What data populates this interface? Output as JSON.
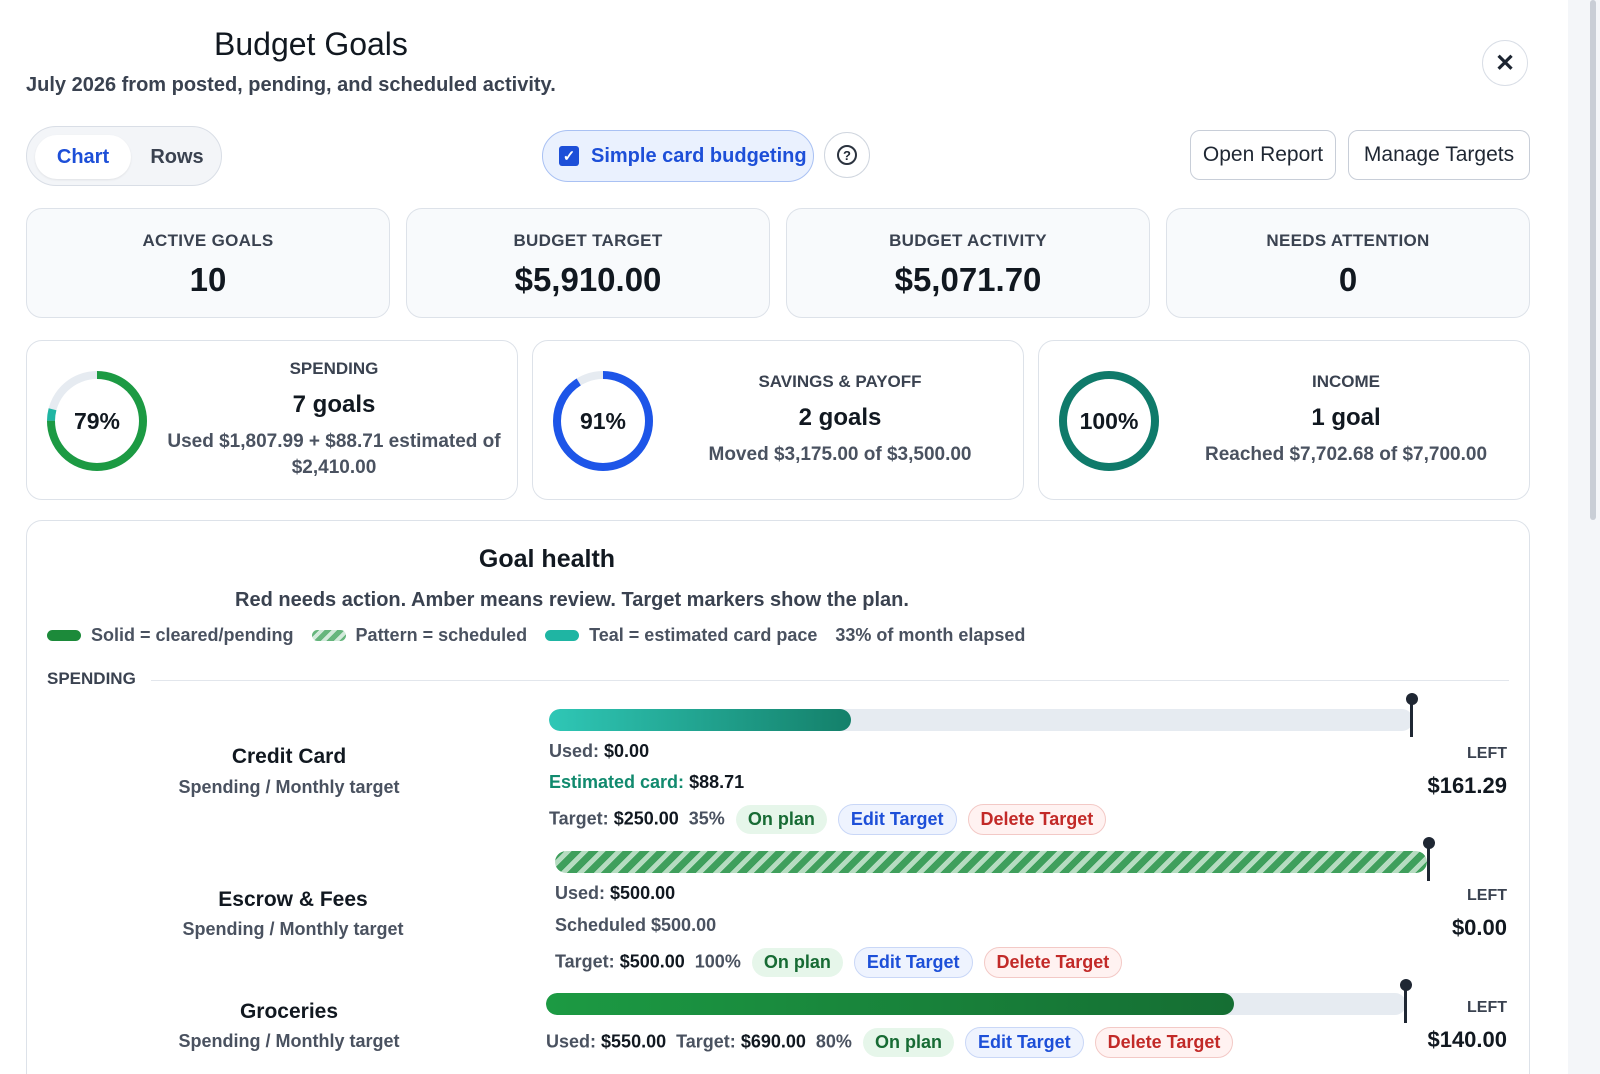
{
  "header": {
    "title": "Budget Goals",
    "subtitle": "July 2026 from posted, pending, and scheduled activity.",
    "close_icon": "✕"
  },
  "view_toggle": {
    "chart": "Chart",
    "rows": "Rows",
    "selected": "Chart"
  },
  "simple_card": {
    "label": "Simple card budgeting",
    "checked": true,
    "help": "?"
  },
  "actions": {
    "open_report": "Open Report",
    "manage_targets": "Manage Targets"
  },
  "stats": [
    {
      "label": "ACTIVE GOALS",
      "value": "10"
    },
    {
      "label": "BUDGET TARGET",
      "value": "$5,910.00"
    },
    {
      "label": "BUDGET ACTIVITY",
      "value": "$5,071.70"
    },
    {
      "label": "NEEDS ATTENTION",
      "value": "0"
    }
  ],
  "categories": [
    {
      "label": "SPENDING",
      "percent_text": "79%",
      "percent": 79,
      "estimated_percent": 4,
      "count": "7 goals",
      "detail": "Used $1,807.99 + $88.71 estimated of $2,410.00",
      "color": "#1c9a43",
      "est_color": "#1fb5a3"
    },
    {
      "label": "SAVINGS & PAYOFF",
      "percent_text": "91%",
      "percent": 91,
      "count": "2 goals",
      "detail": "Moved $3,175.00 of $3,500.00",
      "color": "#1d55e8"
    },
    {
      "label": "INCOME",
      "percent_text": "100%",
      "percent": 100,
      "count": "1 goal",
      "detail": "Reached $7,702.68 of $7,700.00",
      "color": "#0f7a6a"
    }
  ],
  "health": {
    "title": "Goal health",
    "subtitle": "Red needs action. Amber means review. Target markers show the plan.",
    "legend": {
      "solid": "Solid = cleared/pending",
      "pattern": "Pattern = scheduled",
      "teal": "Teal = estimated card pace",
      "elapsed": "33% of month elapsed"
    },
    "section": "SPENDING",
    "left_label": "LEFT",
    "goals": [
      {
        "name": "Credit Card",
        "type": "Spending / Monthly target",
        "fill_fraction": 0.35,
        "used_label": "Used:",
        "used": "$0.00",
        "est_label": "Estimated card:",
        "est": "$88.71",
        "target_label": "Target:",
        "target": "$250.00",
        "pct": "35%",
        "status": "On plan",
        "edit": "Edit Target",
        "delete": "Delete Target",
        "left": "$161.29"
      },
      {
        "name": "Escrow & Fees",
        "type": "Spending / Monthly target",
        "fill_fraction": 1.0,
        "used_label": "Used:",
        "used": "$500.00",
        "sched": "Scheduled $500.00",
        "target_label": "Target:",
        "target": "$500.00",
        "pct": "100%",
        "status": "On plan",
        "edit": "Edit Target",
        "delete": "Delete Target",
        "left": "$0.00"
      },
      {
        "name": "Groceries",
        "type": "Spending / Monthly target",
        "fill_fraction": 0.8,
        "used_label": "Used:",
        "used": "$550.00",
        "target_label": "Target:",
        "target": "$690.00",
        "pct": "80%",
        "status": "On plan",
        "edit": "Edit Target",
        "delete": "Delete Target",
        "left": "$140.00"
      }
    ]
  }
}
